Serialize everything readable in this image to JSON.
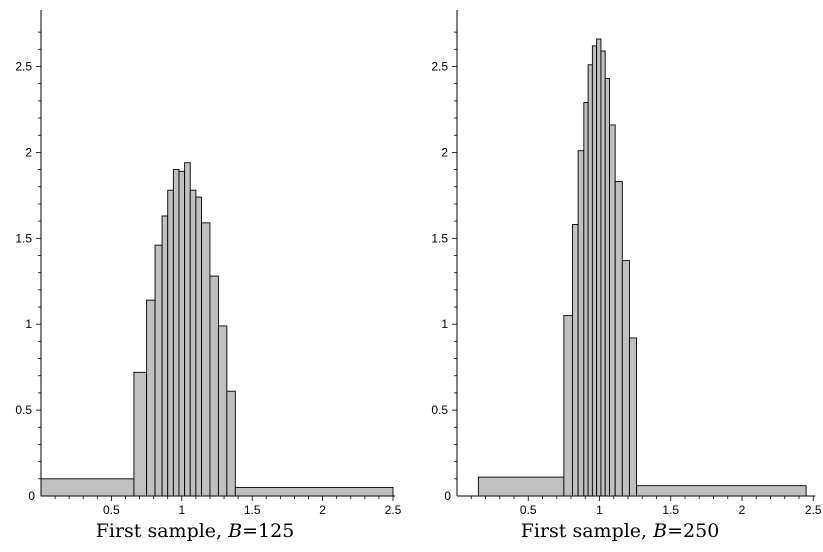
{
  "chart_data": [
    {
      "type": "bar",
      "caption": "First sample,",
      "B_label": "B",
      "B_value": "=125",
      "xlim": [
        0,
        2.5
      ],
      "ylim": [
        0,
        2.8
      ],
      "xticks": [
        "0.5",
        "1",
        "1.5",
        "2",
        "2.5"
      ],
      "yticks": [
        "0.5",
        "1",
        "1.5",
        "2",
        "2.5"
      ],
      "origin_label": "0",
      "bar_fill": "#c0c0c0",
      "bins": [
        {
          "x0": 0.0,
          "x1": 0.66,
          "y": 0.1
        },
        {
          "x0": 0.66,
          "x1": 0.75,
          "y": 0.72
        },
        {
          "x0": 0.75,
          "x1": 0.81,
          "y": 1.14
        },
        {
          "x0": 0.81,
          "x1": 0.86,
          "y": 1.46
        },
        {
          "x0": 0.86,
          "x1": 0.9,
          "y": 1.63
        },
        {
          "x0": 0.9,
          "x1": 0.94,
          "y": 1.78
        },
        {
          "x0": 0.94,
          "x1": 0.98,
          "y": 1.9
        },
        {
          "x0": 0.98,
          "x1": 1.02,
          "y": 1.89
        },
        {
          "x0": 1.02,
          "x1": 1.06,
          "y": 1.94
        },
        {
          "x0": 1.06,
          "x1": 1.1,
          "y": 1.78
        },
        {
          "x0": 1.1,
          "x1": 1.14,
          "y": 1.74
        },
        {
          "x0": 1.14,
          "x1": 1.2,
          "y": 1.59
        },
        {
          "x0": 1.2,
          "x1": 1.26,
          "y": 1.28
        },
        {
          "x0": 1.26,
          "x1": 1.32,
          "y": 0.99
        },
        {
          "x0": 1.32,
          "x1": 1.38,
          "y": 0.61
        },
        {
          "x0": 1.38,
          "x1": 2.5,
          "y": 0.05
        }
      ]
    },
    {
      "type": "bar",
      "caption": "First sample,",
      "B_label": "B",
      "B_value": "=250",
      "xlim": [
        0,
        2.5
      ],
      "ylim": [
        0,
        2.8
      ],
      "xticks": [
        "0.5",
        "1",
        "1.5",
        "2",
        "2.5"
      ],
      "yticks": [
        "0.5",
        "1",
        "1.5",
        "2",
        "2.5"
      ],
      "origin_label": "0",
      "bar_fill": "#c0c0c0",
      "bins": [
        {
          "x0": 0.15,
          "x1": 0.75,
          "y": 0.11
        },
        {
          "x0": 0.75,
          "x1": 0.81,
          "y": 1.05
        },
        {
          "x0": 0.81,
          "x1": 0.85,
          "y": 1.58
        },
        {
          "x0": 0.85,
          "x1": 0.89,
          "y": 2.01
        },
        {
          "x0": 0.89,
          "x1": 0.92,
          "y": 2.29
        },
        {
          "x0": 0.92,
          "x1": 0.95,
          "y": 2.51
        },
        {
          "x0": 0.95,
          "x1": 0.98,
          "y": 2.62
        },
        {
          "x0": 0.98,
          "x1": 1.01,
          "y": 2.66
        },
        {
          "x0": 1.01,
          "x1": 1.04,
          "y": 2.59
        },
        {
          "x0": 1.04,
          "x1": 1.07,
          "y": 2.43
        },
        {
          "x0": 1.07,
          "x1": 1.11,
          "y": 2.16
        },
        {
          "x0": 1.11,
          "x1": 1.16,
          "y": 1.83
        },
        {
          "x0": 1.16,
          "x1": 1.21,
          "y": 1.37
        },
        {
          "x0": 1.21,
          "x1": 1.26,
          "y": 0.92
        },
        {
          "x0": 1.26,
          "x1": 2.45,
          "y": 0.06
        }
      ]
    }
  ]
}
